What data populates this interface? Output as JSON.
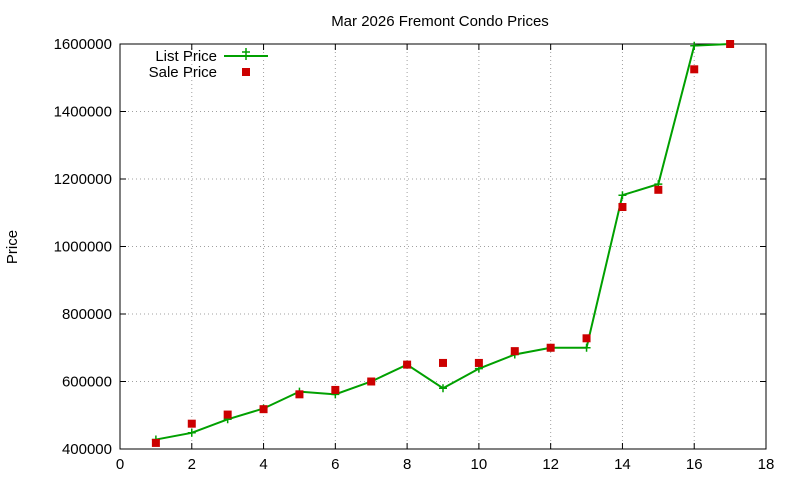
{
  "chart_data": {
    "type": "line",
    "title": "Mar 2026 Fremont Condo Prices",
    "xlabel": "",
    "ylabel": "Price",
    "xlim": [
      0,
      18
    ],
    "ylim": [
      400000,
      1600000
    ],
    "xticks": [
      0,
      2,
      4,
      6,
      8,
      10,
      12,
      14,
      16,
      18
    ],
    "yticks": [
      400000,
      600000,
      800000,
      1000000,
      1200000,
      1400000,
      1600000
    ],
    "grid": true,
    "legend_position": "top-left",
    "series": [
      {
        "name": "List Price",
        "style": "line-with-plus-markers",
        "color": "#00a000",
        "x": [
          1,
          2,
          3,
          4,
          5,
          6,
          7,
          8,
          9,
          10,
          11,
          12,
          13,
          14,
          15,
          16,
          17
        ],
        "y": [
          428000,
          448000,
          488000,
          520000,
          570000,
          562000,
          600000,
          650000,
          580000,
          638000,
          680000,
          700000,
          700000,
          1152000,
          1185000,
          1595000,
          1600000
        ]
      },
      {
        "name": "Sale Price",
        "style": "square-markers",
        "color": "#cc0000",
        "x": [
          1,
          2,
          3,
          4,
          5,
          6,
          7,
          8,
          9,
          10,
          11,
          12,
          13,
          14,
          15,
          16,
          17
        ],
        "y": [
          418000,
          475000,
          502000,
          518000,
          562000,
          575000,
          600000,
          650000,
          655000,
          655000,
          690000,
          700000,
          728000,
          1117000,
          1168000,
          1525000,
          1600000
        ]
      }
    ]
  }
}
